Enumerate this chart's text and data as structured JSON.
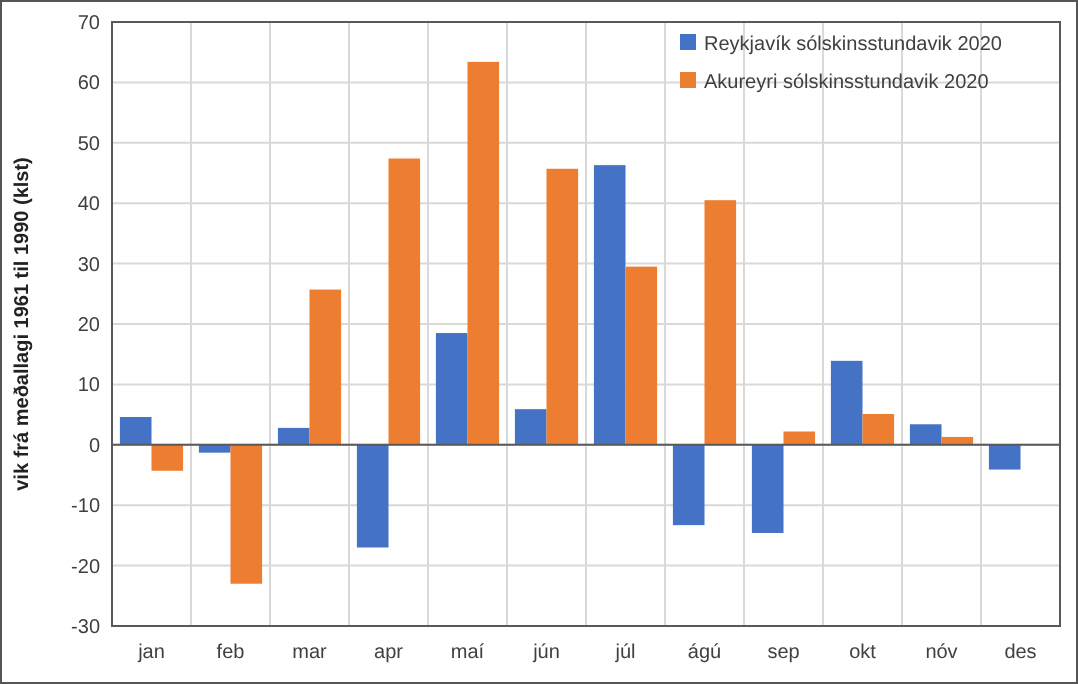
{
  "chart_data": {
    "type": "bar",
    "ylabel": "vik frá meðallagi 1961 til 1990 (klst)",
    "categories": [
      "jan",
      "feb",
      "mar",
      "apr",
      "maí",
      "jún",
      "júl",
      "ágú",
      "sep",
      "okt",
      "nóv",
      "des"
    ],
    "series": [
      {
        "name": "Reykjavík sólskinsstundavik 2020",
        "color": "#4472c4",
        "values": [
          4.6,
          -1.3,
          2.8,
          -17,
          18.5,
          5.9,
          46.3,
          -13.3,
          -14.6,
          13.9,
          3.4,
          -4.1
        ]
      },
      {
        "name": "Akureyri sólskinsstundavik 2020",
        "color": "#ed7d31",
        "values": [
          -4.3,
          -23,
          25.7,
          47.4,
          63.4,
          45.7,
          29.5,
          40.5,
          2.2,
          5.1,
          1.3,
          null
        ]
      }
    ],
    "ylim": [
      -30,
      70
    ],
    "yticks": [
      -30,
      -20,
      -10,
      0,
      10,
      20,
      30,
      40,
      50,
      60,
      70
    ],
    "grid": true,
    "legend": "top right"
  }
}
